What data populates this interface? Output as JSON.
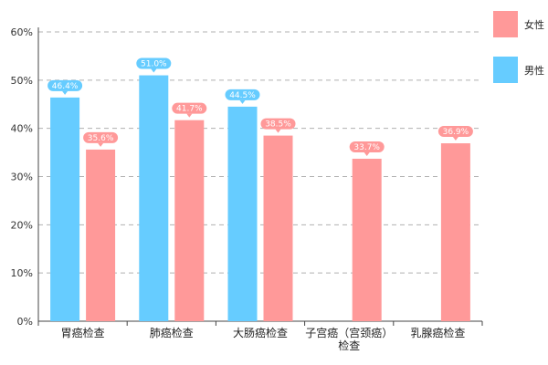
{
  "chart_data": {
    "type": "bar",
    "categories": [
      [
        "胃癌检查"
      ],
      [
        "肺癌检查"
      ],
      [
        "大肠癌检查"
      ],
      [
        "子宫癌（宫颈癌）",
        "检查"
      ],
      [
        "乳腺癌检查"
      ]
    ],
    "series": [
      {
        "name": "男性",
        "color": "#66ccff",
        "values": [
          46.4,
          51.0,
          44.5,
          null,
          null
        ]
      },
      {
        "name": "女性",
        "color": "#ff9999",
        "values": [
          35.6,
          41.7,
          38.5,
          33.7,
          36.9
        ]
      }
    ],
    "data_labels": [
      [
        "46.4%",
        "51.0%",
        "44.5%",
        "",
        ""
      ],
      [
        "35.6%",
        "41.7%",
        "38.5%",
        "33.7%",
        "36.9%"
      ]
    ],
    "y_ticks": [
      "0%",
      "10%",
      "20%",
      "30%",
      "40%",
      "50%",
      "60%"
    ],
    "ylim": [
      0,
      60
    ],
    "grid": true,
    "legend_position": "right"
  }
}
